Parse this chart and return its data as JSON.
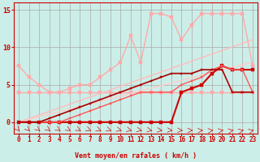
{
  "bg_color": "#cceee8",
  "grid_color": "#aaaaaa",
  "xlabel": "Vent moyen/en rafales ( km/h )",
  "ylabel_ticks": [
    0,
    5,
    10,
    15
  ],
  "xlim": [
    -0.5,
    23.5
  ],
  "ylim": [
    -1.5,
    16
  ],
  "xticks": [
    0,
    1,
    2,
    3,
    4,
    5,
    6,
    7,
    8,
    9,
    10,
    11,
    12,
    13,
    14,
    15,
    16,
    17,
    18,
    19,
    20,
    21,
    22,
    23
  ],
  "series": [
    {
      "x": [
        0,
        1,
        2,
        3,
        4,
        5,
        6,
        7,
        8,
        9,
        10,
        11,
        12,
        13,
        14,
        15,
        16,
        17,
        18,
        19,
        20,
        21,
        22,
        23
      ],
      "y": [
        4,
        4,
        4,
        4,
        4,
        4,
        4,
        4,
        4,
        4,
        4,
        4,
        4,
        4,
        4,
        4,
        4,
        4,
        4,
        4,
        4,
        4,
        4,
        4
      ],
      "color": "#ffaaaa",
      "lw": 1.0,
      "marker": "s",
      "ms": 2.5
    },
    {
      "x": [
        0,
        23
      ],
      "y": [
        0,
        11
      ],
      "color": "#ffbbbb",
      "lw": 1.0,
      "marker": null,
      "ms": 0
    },
    {
      "x": [
        0,
        23
      ],
      "y": [
        0,
        8
      ],
      "color": "#ffcccc",
      "lw": 1.0,
      "marker": null,
      "ms": 0
    },
    {
      "x": [
        0,
        1,
        2,
        3,
        4,
        5,
        6,
        7,
        8,
        9,
        10,
        11,
        12,
        13,
        14,
        15,
        16,
        17,
        18,
        19,
        20,
        21,
        22,
        23
      ],
      "y": [
        7.5,
        6,
        5,
        4,
        4,
        4.5,
        5,
        5,
        6,
        7,
        8,
        11.5,
        8,
        14.5,
        14.5,
        14,
        11,
        13,
        14.5,
        14.5,
        14.5,
        14.5,
        14.5,
        7.5
      ],
      "color": "#ffaaaa",
      "lw": 1.0,
      "marker": "s",
      "ms": 2.5
    },
    {
      "x": [
        0,
        1,
        2,
        3,
        4,
        5,
        6,
        7,
        8,
        9,
        10,
        11,
        12,
        13,
        14,
        15,
        16,
        17,
        18,
        19,
        20,
        21,
        22,
        23
      ],
      "y": [
        0,
        0,
        0,
        0,
        0,
        0,
        0,
        0,
        0,
        0,
        0,
        0,
        0,
        0,
        0,
        0,
        4,
        4.5,
        5,
        6.5,
        7.5,
        7,
        7,
        7
      ],
      "color": "#cc0000",
      "lw": 1.5,
      "marker": "s",
      "ms": 2.5
    },
    {
      "x": [
        0,
        1,
        2,
        3,
        4,
        5,
        6,
        7,
        8,
        9,
        10,
        11,
        12,
        13,
        14,
        15,
        16,
        17,
        18,
        19,
        20,
        21,
        22,
        23
      ],
      "y": [
        0,
        0,
        0,
        0,
        0,
        0.5,
        1,
        1.5,
        2,
        2.5,
        3,
        3.5,
        4,
        4,
        4,
        4,
        5,
        5.5,
        6,
        7,
        7.5,
        7,
        7,
        4
      ],
      "color": "#ff5555",
      "lw": 1.0,
      "marker": "s",
      "ms": 2.0
    },
    {
      "x": [
        0,
        1,
        2,
        3,
        4,
        5,
        6,
        7,
        8,
        9,
        10,
        11,
        12,
        13,
        14,
        15,
        16,
        17,
        18,
        19,
        20,
        21,
        22,
        23
      ],
      "y": [
        0,
        0,
        0,
        0.5,
        1,
        1.5,
        2,
        2.5,
        3,
        3.5,
        4,
        4.5,
        5,
        5.5,
        6,
        6.5,
        6.5,
        6.5,
        7,
        7,
        7,
        4,
        4,
        4
      ],
      "color": "#aa0000",
      "lw": 1.2,
      "marker": "s",
      "ms": 2.0
    }
  ],
  "wind_arrows": true,
  "axis_color": "#cc0000",
  "tick_color": "#cc0000",
  "tick_fontsize": 5.5,
  "xlabel_fontsize": 6
}
